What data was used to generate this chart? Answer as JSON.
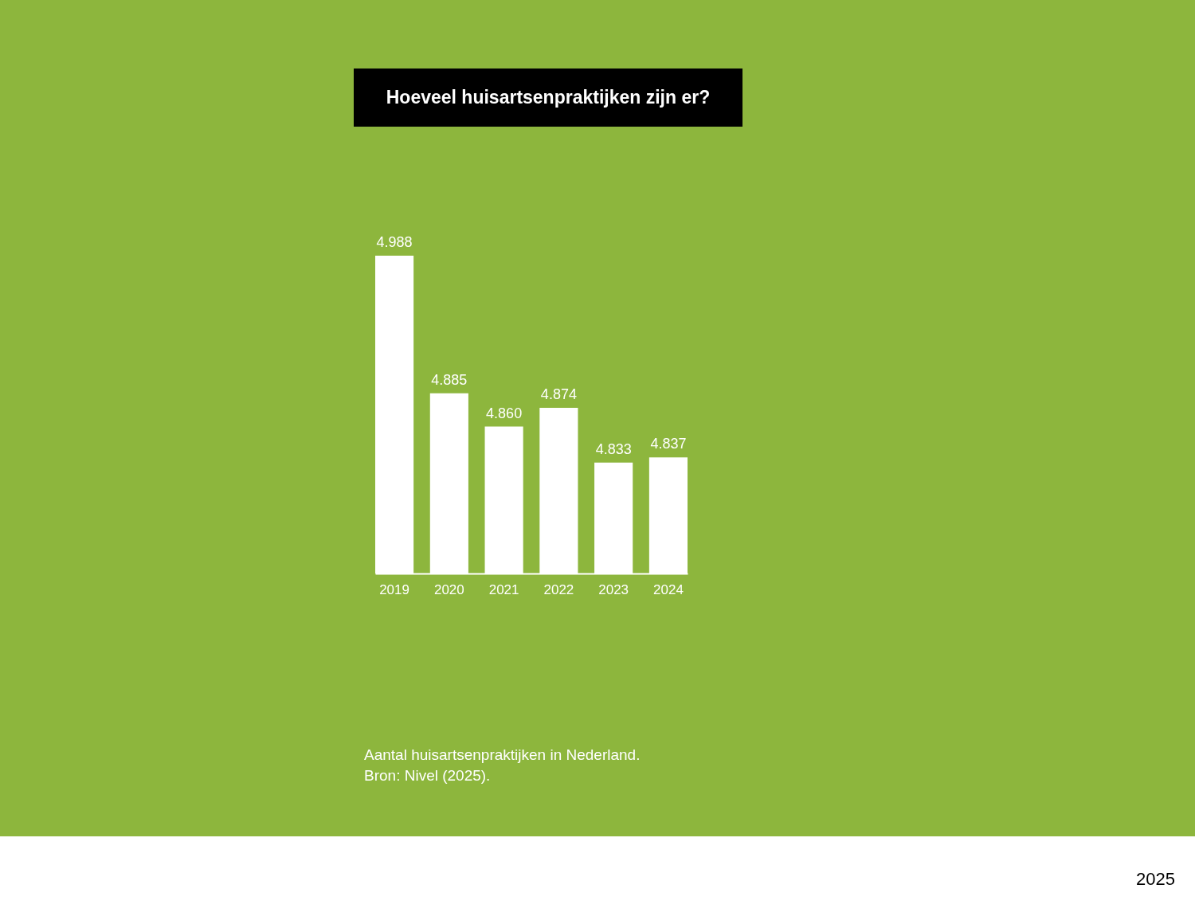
{
  "chart_data": {
    "type": "bar",
    "title": "Hoeveel huisartsenpraktijken zijn er?",
    "categories": [
      "2019",
      "2020",
      "2021",
      "2022",
      "2023",
      "2024"
    ],
    "values": [
      4988,
      4885,
      4860,
      4874,
      4833,
      4837
    ],
    "value_labels": [
      "4.988",
      "4.885",
      "4.860",
      "4.874",
      "4.833",
      "4.837"
    ],
    "color": "#ffffff",
    "ylim": [
      4750,
      4988
    ],
    "tick_labels": "x",
    "annotations": [
      "Aantal huisartsenpraktijken in Nederland.",
      "Bron: Nivel (2025).",
      "2025"
    ]
  }
}
